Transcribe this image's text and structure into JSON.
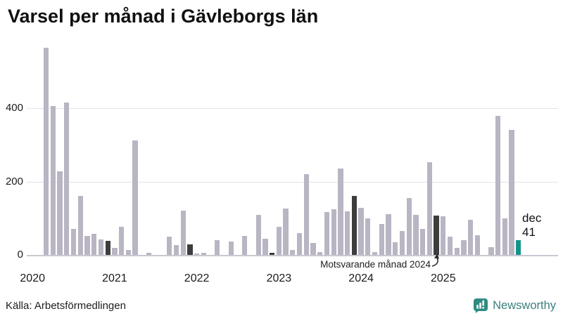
{
  "title": "Varsel per månad i Gävleborgs län",
  "source": "Källa: Arbetsförmedlingen",
  "annotation": {
    "text": "Motsvarande månad 2024"
  },
  "last_point_label": {
    "month": "dec",
    "value": "41"
  },
  "branding": {
    "name": "Newsworthy"
  },
  "colors": {
    "bar_default": "#b9b5c3",
    "bar_december": "#3d3d3d",
    "bar_latest_accent": "#13948b",
    "gridline": "#e4e2e9",
    "axisline": "#c9c7d0",
    "text": "#1a1a1a",
    "brand_teal": "#2f8b81"
  },
  "chart_data": {
    "type": "bar",
    "title": "Varsel per månad i Gävleborgs län",
    "xlabel": "",
    "ylabel": "",
    "x_range": [
      "2020-01",
      "2025-12"
    ],
    "ylim": [
      0,
      580
    ],
    "y_ticks": [
      0,
      200,
      400
    ],
    "grid": "horizontal",
    "year_tick_labels": [
      "2020",
      "2021",
      "2022",
      "2023",
      "2024",
      "2025"
    ],
    "series": [
      {
        "year": "2020",
        "values": [
          0,
          0,
          565,
          405,
          228,
          415,
          70,
          160,
          52,
          57,
          43,
          39
        ]
      },
      {
        "year": "2021",
        "values": [
          19,
          76,
          14,
          312,
          0,
          6,
          0,
          0,
          49,
          26,
          121,
          28
        ]
      },
      {
        "year": "2022",
        "values": [
          3,
          5,
          0,
          41,
          0,
          37,
          0,
          51,
          0,
          110,
          45,
          6
        ]
      },
      {
        "year": "2023",
        "values": [
          77,
          127,
          14,
          60,
          220,
          33,
          8,
          116,
          124,
          235,
          118,
          160
        ]
      },
      {
        "year": "2024",
        "values": [
          128,
          100,
          8,
          85,
          112,
          34,
          65,
          155,
          109,
          70,
          253,
          107
        ]
      },
      {
        "year": "2025",
        "values": [
          105,
          50,
          20,
          40,
          95,
          54,
          0,
          22,
          380,
          100,
          340,
          41
        ]
      }
    ],
    "highlighted_december_color": "dark gray bars mark December of each year 2020-2024",
    "latest_bar": {
      "month": "dec",
      "year": "2025",
      "value": 41,
      "color_role": "accent"
    },
    "annotation": {
      "text": "Motsvarande månad 2024",
      "points_to": "2024-12"
    },
    "legend": "none"
  }
}
